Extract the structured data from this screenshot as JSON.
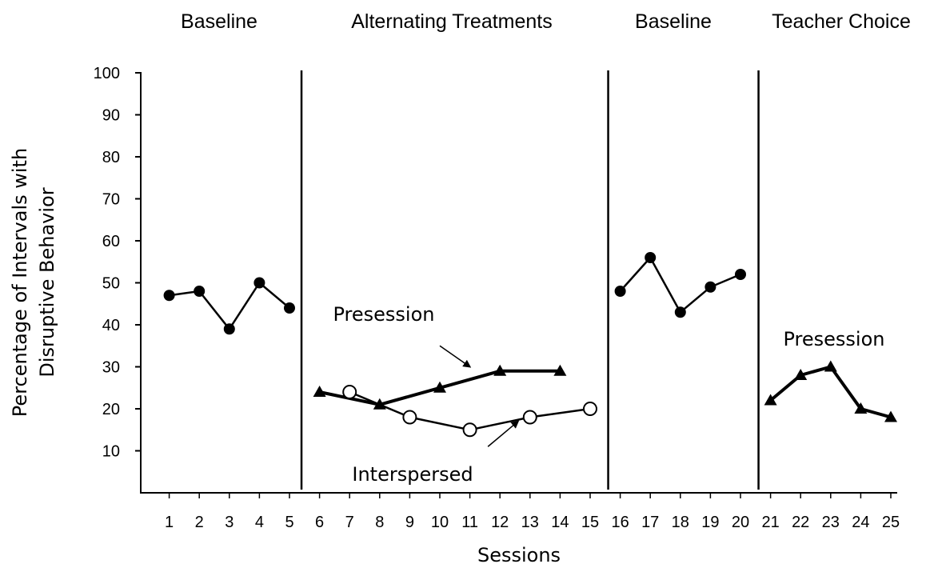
{
  "chart_data": {
    "type": "line",
    "title": "",
    "xlabel": "Sessions",
    "ylabel_lines": [
      "Percentage of Intervals with",
      "Disruptive Behavior"
    ],
    "ylim": [
      0,
      100
    ],
    "y_ticks": [
      10,
      20,
      30,
      40,
      50,
      60,
      70,
      80,
      90,
      100
    ],
    "xlim": [
      0,
      25
    ],
    "x_ticks": [
      1,
      2,
      3,
      4,
      5,
      6,
      7,
      8,
      9,
      10,
      11,
      12,
      13,
      14,
      15,
      16,
      17,
      18,
      19,
      20,
      21,
      22,
      23,
      24,
      25
    ],
    "grid": false,
    "phases": [
      {
        "label": "Baseline"
      },
      {
        "label": "Alternating Treatments"
      },
      {
        "label": "Baseline"
      },
      {
        "label": "Teacher Choice"
      }
    ],
    "phase_change_after_sessions": [
      5.4,
      15.6,
      20.6
    ],
    "series": [
      {
        "marker": "filled-circle",
        "line": "thin",
        "x": [
          1,
          2,
          3,
          4,
          5
        ],
        "y": [
          47,
          48,
          39,
          50,
          44
        ]
      },
      {
        "marker": "filled-triangle",
        "line": "thick",
        "x": [
          6,
          8,
          10,
          12,
          14
        ],
        "y": [
          24,
          21,
          25,
          29,
          29
        ]
      },
      {
        "marker": "open-circle",
        "line": "thin",
        "x": [
          7,
          9,
          11,
          13,
          15
        ],
        "y": [
          24,
          18,
          15,
          18,
          20
        ]
      },
      {
        "marker": "filled-circle",
        "line": "thin",
        "x": [
          16,
          17,
          18,
          19,
          20
        ],
        "y": [
          48,
          56,
          43,
          49,
          52
        ]
      },
      {
        "marker": "filled-triangle",
        "line": "thick",
        "x": [
          21,
          22,
          23,
          24,
          25
        ],
        "y": [
          22,
          28,
          30,
          20,
          18
        ]
      }
    ],
    "annotations": [
      {
        "text": "Presession",
        "arrow": {
          "from": [
            10,
            35
          ],
          "to": [
            11,
            30
          ]
        }
      },
      {
        "text": "Interspersed",
        "arrow": {
          "from": [
            11.6,
            11
          ],
          "to": [
            12.6,
            17
          ]
        }
      },
      {
        "text": "Presession"
      }
    ],
    "colors": {
      "ink": "#000000",
      "background": "#ffffff"
    }
  }
}
